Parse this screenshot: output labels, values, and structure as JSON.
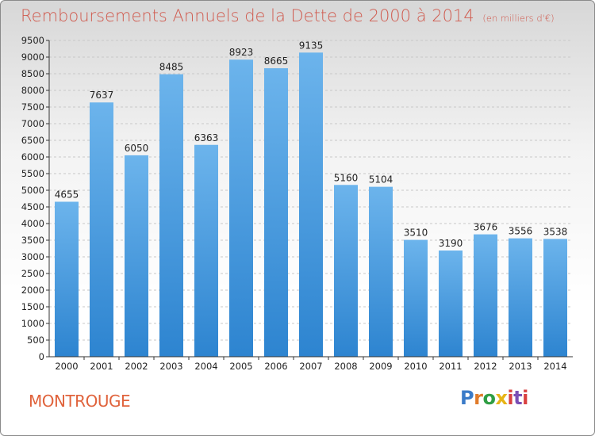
{
  "header": {
    "title": "Remboursements Annuels de la Dette de 2000 à 2014",
    "subtitle": "(en milliers d'€)"
  },
  "footer": {
    "city": "MONTROUGE",
    "logo": {
      "p": "P",
      "r": "r",
      "o": "o",
      "x": "x",
      "i1": "i",
      "t": "t",
      "i2": "i"
    }
  },
  "colors": {
    "title": "#d05a4e",
    "city": "#e0633c",
    "bar_top": "#6cb4ec",
    "bar_bottom": "#2d84d0",
    "logo_p": "#3a7bc8",
    "logo_r": "#e07b2a",
    "logo_o": "#2f9e44",
    "logo_x": "#e7b416",
    "logo_i": "#d94040",
    "logo_t": "#7a4fb5"
  },
  "chart_data": {
    "type": "bar",
    "title": "Remboursements Annuels de la Dette de 2000 à 2014",
    "subtitle": "(en milliers d'€)",
    "xlabel": "",
    "ylabel": "",
    "categories": [
      "2000",
      "2001",
      "2002",
      "2003",
      "2004",
      "2005",
      "2006",
      "2007",
      "2008",
      "2009",
      "2010",
      "2011",
      "2012",
      "2013",
      "2014"
    ],
    "values": [
      4655,
      7637,
      6050,
      8485,
      6363,
      8923,
      8665,
      9135,
      5160,
      5104,
      3510,
      3190,
      3676,
      3556,
      3538
    ],
    "ylim": [
      0,
      9500
    ],
    "yticks": [
      0,
      500,
      1000,
      1500,
      2000,
      2500,
      3000,
      3500,
      4000,
      4500,
      5000,
      5500,
      6000,
      6500,
      7000,
      7500,
      8000,
      8500,
      9000,
      9500
    ],
    "grid": true
  }
}
